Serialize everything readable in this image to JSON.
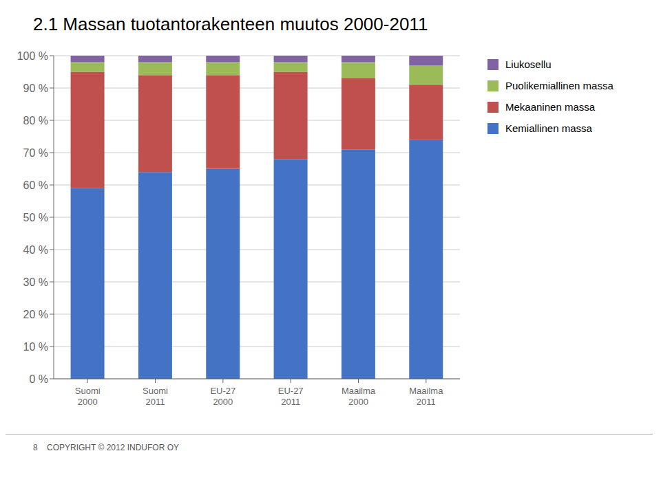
{
  "chart_data": {
    "type": "bar",
    "title": "2.1 Massan tuotantorakenteen muutos 2000-2011",
    "categories": [
      "Suomi\n2000",
      "Suomi\n2011",
      "EU-27\n2000",
      "EU-27\n2011",
      "Maailma\n2000",
      "Maailma\n2011"
    ],
    "series": [
      {
        "name": "Kemiallinen massa",
        "color": "#4472C4",
        "values": [
          59,
          64,
          65,
          68,
          71,
          74
        ]
      },
      {
        "name": "Mekaaninen massa",
        "color": "#C0504D",
        "values": [
          36,
          30,
          29,
          27,
          22,
          17
        ]
      },
      {
        "name": "Puolikemiallinen massa",
        "color": "#9BBB59",
        "values": [
          3,
          4,
          4,
          3,
          5,
          6
        ]
      },
      {
        "name": "Liukosellu",
        "color": "#8064A2",
        "values": [
          2,
          2,
          2,
          2,
          2,
          3
        ]
      }
    ],
    "stacked": true,
    "grid": true,
    "legend": "right",
    "ylim": [
      0,
      100
    ],
    "yticks": [
      {
        "value": 0,
        "label": "0 %"
      },
      {
        "value": 10,
        "label": "10 %"
      },
      {
        "value": 20,
        "label": "20 %"
      },
      {
        "value": 30,
        "label": "30 %"
      },
      {
        "value": 40,
        "label": "40 %"
      },
      {
        "value": 50,
        "label": "50 %"
      },
      {
        "value": 60,
        "label": "60 %"
      },
      {
        "value": 70,
        "label": "70 %"
      },
      {
        "value": 80,
        "label": "80 %"
      },
      {
        "value": 90,
        "label": "90 %"
      },
      {
        "value": 100,
        "label": "100 %"
      }
    ],
    "annotations": [
      "8    COPYRIGHT © 2012 INDUFOR OY"
    ]
  }
}
